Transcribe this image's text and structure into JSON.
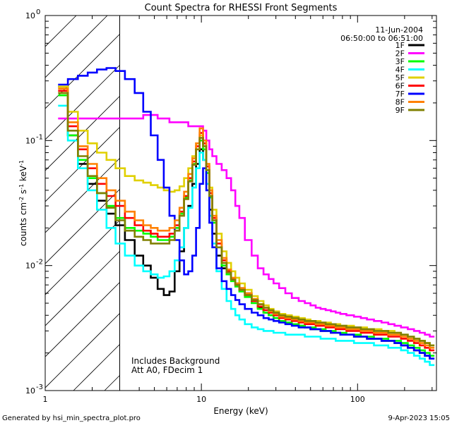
{
  "chart_data": {
    "type": "line",
    "title": "Count Spectra for RHESSI Front Segments",
    "xlabel": "Energy (keV)",
    "ylabel": "counts cm-2 s-1 keV-1",
    "xscale": "log",
    "yscale": "log",
    "xlim": [
      1,
      320
    ],
    "ylim": [
      0.001,
      1
    ],
    "x_ticks": [
      {
        "value": 1,
        "label": "1"
      },
      {
        "value": 10,
        "label": "10"
      },
      {
        "value": 100,
        "label": "100"
      }
    ],
    "y_ticks": [
      {
        "value": 1,
        "mantissa": "10",
        "exp": "0"
      },
      {
        "value": 0.1,
        "mantissa": "10",
        "exp": "-1"
      },
      {
        "value": 0.01,
        "mantissa": "10",
        "exp": "-2"
      },
      {
        "value": 0.001,
        "mantissa": "10",
        "exp": "-3"
      }
    ],
    "date": "11-Jun-2004",
    "time_range": "06:50:00 to 06:51:00",
    "excluded_region_max_keV": 3,
    "notes": [
      "Includes Background",
      "Att A0, FDecim 1"
    ],
    "footer_left": "Generated by hsi_min_spectra_plot.pro",
    "footer_right": "9-Apr-2023 15:05",
    "x": [
      1.3,
      1.5,
      1.75,
      2.0,
      2.3,
      2.65,
      3.0,
      3.5,
      4.0,
      4.5,
      5.0,
      5.5,
      6.0,
      6.5,
      7.0,
      7.5,
      8.0,
      8.5,
      9.0,
      9.5,
      10.0,
      10.5,
      11.0,
      11.5,
      12.0,
      13.0,
      14.0,
      15.0,
      16.0,
      17.0,
      18.0,
      20.0,
      22.0,
      24.0,
      26.0,
      28.0,
      30.0,
      33.0,
      36.0,
      40.0,
      44.0,
      48.0,
      52.0,
      56.0,
      60.0,
      65.0,
      70.0,
      75.0,
      80.0,
      90.0,
      100.0,
      110.0,
      120.0,
      135.0,
      150.0,
      165.0,
      180.0,
      200.0,
      220.0,
      240.0,
      260.0,
      280.0,
      300.0
    ],
    "series": [
      {
        "name": "1F",
        "color": "#000000",
        "values": [
          0.27,
          0.11,
          0.065,
          0.045,
          0.033,
          0.026,
          0.021,
          0.016,
          0.012,
          0.01,
          0.008,
          0.0065,
          0.0058,
          0.0062,
          0.009,
          0.013,
          0.02,
          0.03,
          0.045,
          0.065,
          0.085,
          0.07,
          0.045,
          0.028,
          0.018,
          0.012,
          0.0095,
          0.0085,
          0.0078,
          0.0072,
          0.0066,
          0.006,
          0.0052,
          0.0046,
          0.0042,
          0.004,
          0.0038,
          0.0036,
          0.0035,
          0.0034,
          0.0033,
          0.0032,
          0.0031,
          0.0031,
          0.003,
          0.003,
          0.0029,
          0.0029,
          0.0028,
          0.0028,
          0.0027,
          0.0027,
          0.0026,
          0.0026,
          0.0025,
          0.0025,
          0.0024,
          0.0023,
          0.0022,
          0.0021,
          0.002,
          0.0019,
          0.0018
        ]
      },
      {
        "name": "2F",
        "color": "#ff00ff",
        "values": [
          0.15,
          0.15,
          0.15,
          0.15,
          0.15,
          0.15,
          0.15,
          0.15,
          0.15,
          0.16,
          0.16,
          0.15,
          0.15,
          0.14,
          0.14,
          0.14,
          0.14,
          0.13,
          0.13,
          0.13,
          0.13,
          0.12,
          0.1,
          0.085,
          0.075,
          0.065,
          0.058,
          0.05,
          0.04,
          0.03,
          0.024,
          0.016,
          0.012,
          0.0095,
          0.0085,
          0.0078,
          0.0072,
          0.0066,
          0.006,
          0.0055,
          0.0052,
          0.005,
          0.0048,
          0.0046,
          0.0045,
          0.0044,
          0.0043,
          0.0042,
          0.0041,
          0.004,
          0.0039,
          0.0038,
          0.0037,
          0.0036,
          0.0035,
          0.0034,
          0.0033,
          0.0032,
          0.0031,
          0.003,
          0.0029,
          0.0028,
          0.0027
        ]
      },
      {
        "name": "3F",
        "color": "#00ff00",
        "values": [
          0.23,
          0.11,
          0.07,
          0.05,
          0.038,
          0.03,
          0.024,
          0.02,
          0.019,
          0.018,
          0.017,
          0.016,
          0.016,
          0.017,
          0.02,
          0.026,
          0.035,
          0.048,
          0.065,
          0.085,
          0.1,
          0.085,
          0.055,
          0.035,
          0.022,
          0.014,
          0.01,
          0.0085,
          0.0075,
          0.0068,
          0.0062,
          0.0056,
          0.005,
          0.0045,
          0.0042,
          0.004,
          0.0038,
          0.0036,
          0.0035,
          0.0034,
          0.0033,
          0.0032,
          0.0032,
          0.0031,
          0.0031,
          0.003,
          0.003,
          0.0029,
          0.0029,
          0.0028,
          0.0028,
          0.0027,
          0.0027,
          0.0026,
          0.0026,
          0.0025,
          0.0025,
          0.0024,
          0.0023,
          0.0022,
          0.0021,
          0.002,
          0.0019
        ]
      },
      {
        "name": "4F",
        "color": "#00ffff",
        "values": [
          0.19,
          0.1,
          0.06,
          0.04,
          0.028,
          0.02,
          0.015,
          0.012,
          0.01,
          0.009,
          0.0085,
          0.008,
          0.0082,
          0.009,
          0.011,
          0.014,
          0.02,
          0.029,
          0.042,
          0.06,
          0.08,
          0.07,
          0.045,
          0.025,
          0.015,
          0.009,
          0.0065,
          0.0052,
          0.0045,
          0.004,
          0.0037,
          0.0034,
          0.0032,
          0.0031,
          0.003,
          0.003,
          0.0029,
          0.0029,
          0.0028,
          0.0028,
          0.0028,
          0.0027,
          0.0027,
          0.0027,
          0.0026,
          0.0026,
          0.0026,
          0.0025,
          0.0025,
          0.0025,
          0.0024,
          0.0024,
          0.0024,
          0.0023,
          0.0023,
          0.0022,
          0.0022,
          0.0021,
          0.002,
          0.0019,
          0.0018,
          0.0017,
          0.0016
        ]
      },
      {
        "name": "5F",
        "color": "#e0d000",
        "values": [
          0.27,
          0.17,
          0.12,
          0.095,
          0.08,
          0.07,
          0.06,
          0.052,
          0.048,
          0.046,
          0.044,
          0.042,
          0.04,
          0.039,
          0.04,
          0.043,
          0.05,
          0.06,
          0.075,
          0.095,
          0.11,
          0.095,
          0.065,
          0.042,
          0.028,
          0.018,
          0.013,
          0.0105,
          0.009,
          0.008,
          0.0072,
          0.0064,
          0.0057,
          0.0052,
          0.0048,
          0.0045,
          0.0043,
          0.0041,
          0.004,
          0.0039,
          0.0038,
          0.0037,
          0.0036,
          0.0036,
          0.0035,
          0.0035,
          0.0034,
          0.0034,
          0.0033,
          0.0033,
          0.0032,
          0.0032,
          0.0031,
          0.0031,
          0.003,
          0.003,
          0.0029,
          0.0028,
          0.0027,
          0.0026,
          0.0025,
          0.0024,
          0.0023
        ]
      },
      {
        "name": "6F",
        "color": "#ff0000",
        "values": [
          0.25,
          0.13,
          0.085,
          0.06,
          0.045,
          0.036,
          0.03,
          0.024,
          0.021,
          0.019,
          0.018,
          0.017,
          0.017,
          0.018,
          0.021,
          0.027,
          0.036,
          0.05,
          0.068,
          0.09,
          0.115,
          0.095,
          0.062,
          0.038,
          0.024,
          0.015,
          0.011,
          0.009,
          0.0078,
          0.007,
          0.0064,
          0.0058,
          0.0052,
          0.0047,
          0.0044,
          0.0042,
          0.004,
          0.0038,
          0.0037,
          0.0036,
          0.0035,
          0.0034,
          0.0034,
          0.0033,
          0.0033,
          0.0032,
          0.0032,
          0.0031,
          0.0031,
          0.003,
          0.003,
          0.0029,
          0.0029,
          0.0028,
          0.0028,
          0.0027,
          0.0027,
          0.0026,
          0.0025,
          0.0024,
          0.0023,
          0.0022,
          0.0021
        ]
      },
      {
        "name": "7F",
        "color": "#0000ff",
        "values": [
          0.28,
          0.31,
          0.33,
          0.35,
          0.37,
          0.38,
          0.36,
          0.31,
          0.24,
          0.17,
          0.11,
          0.07,
          0.042,
          0.025,
          0.016,
          0.011,
          0.0085,
          0.009,
          0.012,
          0.02,
          0.045,
          0.06,
          0.04,
          0.022,
          0.014,
          0.0095,
          0.0075,
          0.0065,
          0.0058,
          0.0053,
          0.0049,
          0.0045,
          0.0042,
          0.004,
          0.0038,
          0.0037,
          0.0036,
          0.0035,
          0.0034,
          0.0033,
          0.0032,
          0.0032,
          0.0031,
          0.0031,
          0.003,
          0.003,
          0.0029,
          0.0029,
          0.0028,
          0.0028,
          0.0027,
          0.0027,
          0.0026,
          0.0026,
          0.0025,
          0.0025,
          0.0024,
          0.0023,
          0.0022,
          0.0021,
          0.002,
          0.0019,
          0.0018
        ]
      },
      {
        "name": "8F",
        "color": "#ff8000",
        "values": [
          0.26,
          0.14,
          0.09,
          0.065,
          0.05,
          0.04,
          0.033,
          0.027,
          0.023,
          0.021,
          0.02,
          0.019,
          0.019,
          0.02,
          0.023,
          0.029,
          0.039,
          0.054,
          0.072,
          0.095,
          0.125,
          0.1,
          0.065,
          0.04,
          0.025,
          0.016,
          0.0115,
          0.0093,
          0.008,
          0.0072,
          0.0066,
          0.006,
          0.0054,
          0.0049,
          0.0046,
          0.0043,
          0.0041,
          0.0039,
          0.0038,
          0.0037,
          0.0036,
          0.0035,
          0.0035,
          0.0034,
          0.0034,
          0.0033,
          0.0033,
          0.0032,
          0.0032,
          0.0031,
          0.0031,
          0.003,
          0.003,
          0.0029,
          0.0029,
          0.0028,
          0.0028,
          0.0027,
          0.0026,
          0.0025,
          0.0024,
          0.0023,
          0.0022
        ]
      },
      {
        "name": "9F",
        "color": "#808000",
        "values": [
          0.24,
          0.12,
          0.075,
          0.052,
          0.038,
          0.029,
          0.023,
          0.019,
          0.017,
          0.016,
          0.015,
          0.015,
          0.015,
          0.016,
          0.019,
          0.025,
          0.034,
          0.047,
          0.064,
          0.085,
          0.105,
          0.09,
          0.058,
          0.036,
          0.023,
          0.014,
          0.0105,
          0.0088,
          0.0077,
          0.007,
          0.0064,
          0.0058,
          0.0053,
          0.0049,
          0.0046,
          0.0044,
          0.0042,
          0.004,
          0.0039,
          0.0038,
          0.0037,
          0.0036,
          0.0036,
          0.0035,
          0.0035,
          0.0034,
          0.0034,
          0.0033,
          0.0033,
          0.0032,
          0.0032,
          0.0031,
          0.0031,
          0.003,
          0.003,
          0.0029,
          0.0029,
          0.0028,
          0.0027,
          0.0026,
          0.0025,
          0.0024,
          0.0023
        ]
      }
    ]
  }
}
